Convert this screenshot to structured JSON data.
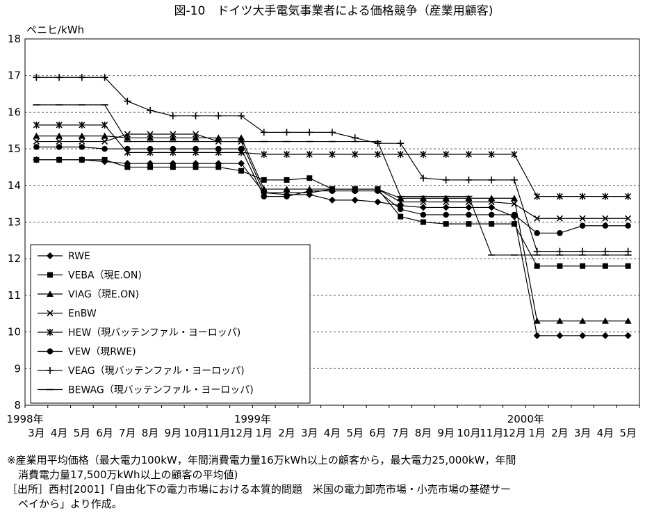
{
  "chart_data": {
    "type": "line",
    "title": "図-10　ドイツ大手電気事業者による価格競争（産業用顧客)",
    "ylabel": "ペニヒ/kWh",
    "xlabel": "",
    "ylim": [
      8,
      18
    ],
    "yticks": [
      "8",
      "9",
      "10",
      "11",
      "12",
      "13",
      "14",
      "15",
      "16",
      "17",
      "18"
    ],
    "x_year_labels": [
      {
        "label": "1998年",
        "index": 0
      },
      {
        "label": "1999年",
        "index": 10
      },
      {
        "label": "2000年",
        "index": 22
      }
    ],
    "categories": [
      "3月",
      "4月",
      "5月",
      "6月",
      "7月",
      "8月",
      "9月",
      "10月",
      "11月",
      "12月",
      "1月",
      "2月",
      "3月",
      "4月",
      "5月",
      "6月",
      "7月",
      "8月",
      "9月",
      "10月",
      "11月",
      "12月",
      "1月",
      "2月",
      "3月",
      "4月",
      "5月"
    ],
    "grid": "horizontal-dashed",
    "legend_position": "bottom-left",
    "series": [
      {
        "name": "RWE",
        "marker": "diamond",
        "values": [
          14.7,
          14.7,
          14.7,
          14.65,
          14.6,
          14.6,
          14.6,
          14.6,
          14.6,
          14.6,
          13.8,
          13.75,
          13.75,
          13.6,
          13.6,
          13.55,
          13.45,
          13.4,
          13.4,
          13.4,
          13.4,
          13.15,
          9.9,
          9.9,
          9.9,
          9.9,
          9.9
        ]
      },
      {
        "name": "VEBA（現E.ON)",
        "marker": "square",
        "values": [
          14.7,
          14.7,
          14.7,
          14.7,
          14.5,
          14.5,
          14.5,
          14.5,
          14.5,
          14.4,
          14.15,
          14.15,
          14.2,
          13.9,
          13.9,
          13.9,
          13.15,
          13.0,
          12.95,
          12.95,
          12.95,
          12.95,
          11.8,
          11.8,
          11.8,
          11.8,
          11.8
        ]
      },
      {
        "name": "VIAG（現E.ON)",
        "marker": "triangle",
        "values": [
          15.35,
          15.35,
          15.35,
          15.35,
          15.3,
          15.3,
          15.3,
          15.3,
          15.3,
          15.3,
          13.9,
          13.9,
          13.9,
          13.9,
          13.9,
          13.9,
          13.65,
          13.65,
          13.65,
          13.65,
          13.65,
          13.65,
          10.3,
          10.3,
          10.3,
          10.3,
          10.3
        ]
      },
      {
        "name": "EnBW",
        "marker": "x",
        "values": [
          15.2,
          15.2,
          15.2,
          15.2,
          15.4,
          15.4,
          15.4,
          15.4,
          15.2,
          15.2,
          13.8,
          13.8,
          13.8,
          13.9,
          13.9,
          13.9,
          13.55,
          13.55,
          13.55,
          13.55,
          13.55,
          13.5,
          13.1,
          13.1,
          13.1,
          13.1,
          13.1
        ]
      },
      {
        "name": "HEW（現バッテンファル・ヨーロッパ)",
        "marker": "asterisk",
        "values": [
          15.65,
          15.65,
          15.65,
          15.65,
          14.9,
          14.9,
          14.9,
          14.9,
          14.9,
          14.9,
          14.85,
          14.85,
          14.85,
          14.85,
          14.85,
          14.85,
          14.85,
          14.85,
          14.85,
          14.85,
          14.85,
          14.85,
          13.7,
          13.7,
          13.7,
          13.7,
          13.7
        ]
      },
      {
        "name": "VEW（現RWE)",
        "marker": "circle",
        "values": [
          15.05,
          15.05,
          15.05,
          15.0,
          15.0,
          15.0,
          15.0,
          15.0,
          15.0,
          15.0,
          13.7,
          13.7,
          13.85,
          13.85,
          13.85,
          13.85,
          13.35,
          13.2,
          13.2,
          13.2,
          13.2,
          13.2,
          12.7,
          12.7,
          12.9,
          12.9,
          12.9
        ]
      },
      {
        "name": "VEAG（現バッテンファル・ヨーロッパ)",
        "marker": "plus",
        "values": [
          16.95,
          16.95,
          16.95,
          16.95,
          16.3,
          16.05,
          15.9,
          15.9,
          15.9,
          15.9,
          15.45,
          15.45,
          15.45,
          15.45,
          15.3,
          15.15,
          15.15,
          14.2,
          14.15,
          14.15,
          14.15,
          14.15,
          12.2,
          12.2,
          12.2,
          12.2,
          12.2
        ]
      },
      {
        "name": "BEWAG（現バッテンファル・ヨーロッパ)",
        "marker": "dash",
        "values": [
          16.2,
          16.2,
          16.2,
          16.2,
          15.2,
          15.2,
          15.2,
          15.2,
          15.2,
          15.2,
          15.2,
          15.2,
          15.2,
          15.2,
          15.2,
          15.2,
          13.7,
          13.7,
          13.7,
          13.7,
          12.1,
          12.1,
          12.1,
          12.1,
          12.1,
          12.1,
          12.1
        ]
      }
    ]
  },
  "notes": {
    "line1": "※産業用平均価格（最大電力100kW，年間消費電力量16万kWh以上の顧客から，最大電力25,000kW，年間",
    "line2": "消費電力量17,500万kWh以上の顧客の平均値)",
    "line3": "［出所］西村[2001]「自由化下の電力市場における本質的問題　米国の電力卸売市場・小売市場の基礎サー",
    "line4": "ベイから」より作成。"
  }
}
